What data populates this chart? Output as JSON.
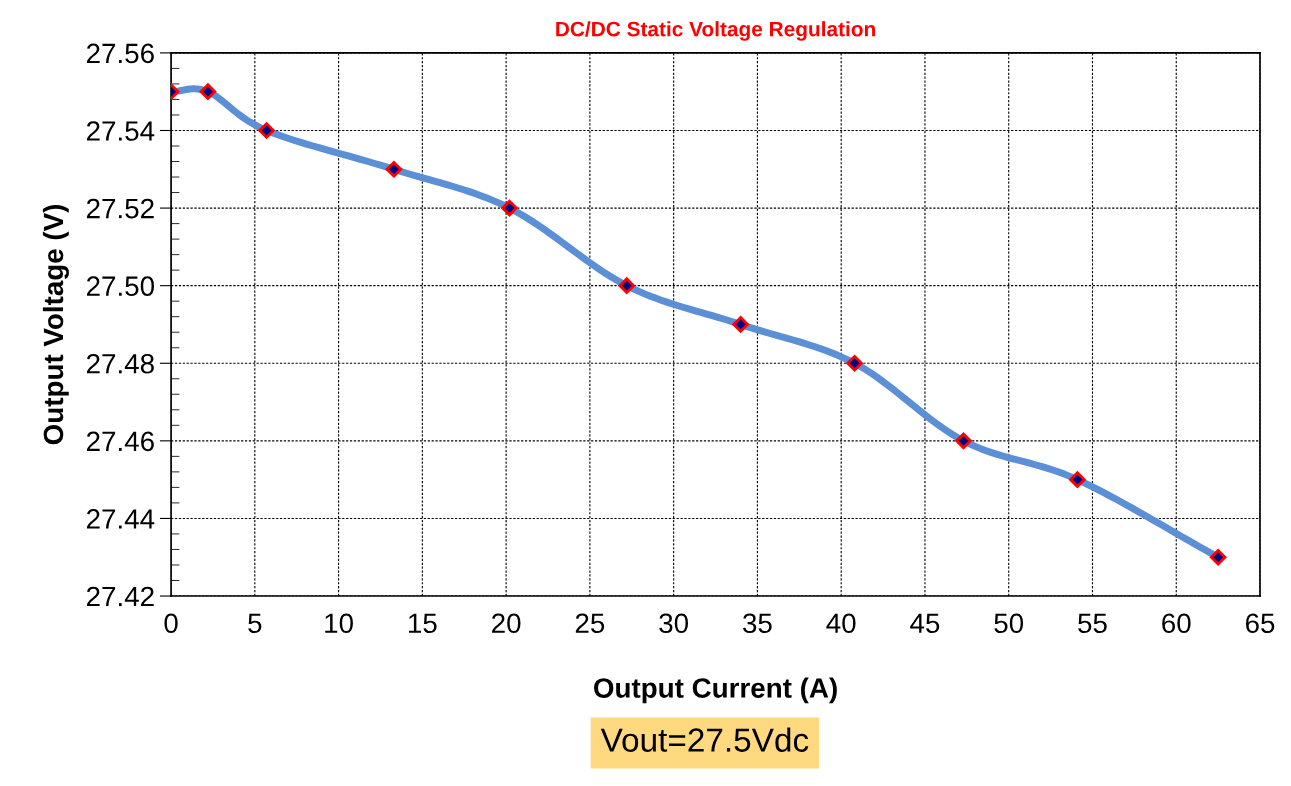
{
  "chart_data": {
    "type": "line",
    "title": "DC/DC Static Voltage Regulation",
    "xlabel": "Output Current (A)",
    "ylabel": "Output Voltage (V)",
    "annotations": [
      "Vout=27.5Vdc"
    ],
    "x": [
      0,
      2.2,
      5.7,
      13.3,
      20.2,
      27.2,
      34.0,
      40.8,
      47.3,
      54.1,
      62.5
    ],
    "series": [
      {
        "color": "#5b8fd6",
        "values": [
          27.55,
          27.55,
          27.54,
          27.53,
          27.52,
          27.5,
          27.49,
          27.48,
          27.46,
          27.45,
          27.43
        ]
      }
    ],
    "xlim": [
      0,
      65
    ],
    "xticks": [
      0,
      5,
      10,
      15,
      20,
      25,
      30,
      35,
      40,
      45,
      50,
      55,
      60,
      65
    ],
    "ylim": [
      27.42,
      27.56
    ],
    "yticks": [
      {
        "value": 27.42,
        "label": "27.42"
      },
      {
        "value": 27.44,
        "label": "27.44"
      },
      {
        "value": 27.46,
        "label": "27.46"
      },
      {
        "value": 27.48,
        "label": "27.48"
      },
      {
        "value": 27.5,
        "label": "27.50"
      },
      {
        "value": 27.52,
        "label": "27.52"
      },
      {
        "value": 27.54,
        "label": "27.54"
      },
      {
        "value": 27.56,
        "label": "27.56"
      }
    ],
    "grid": true,
    "marker": "diamond",
    "line_style": "solid",
    "legend": false
  }
}
